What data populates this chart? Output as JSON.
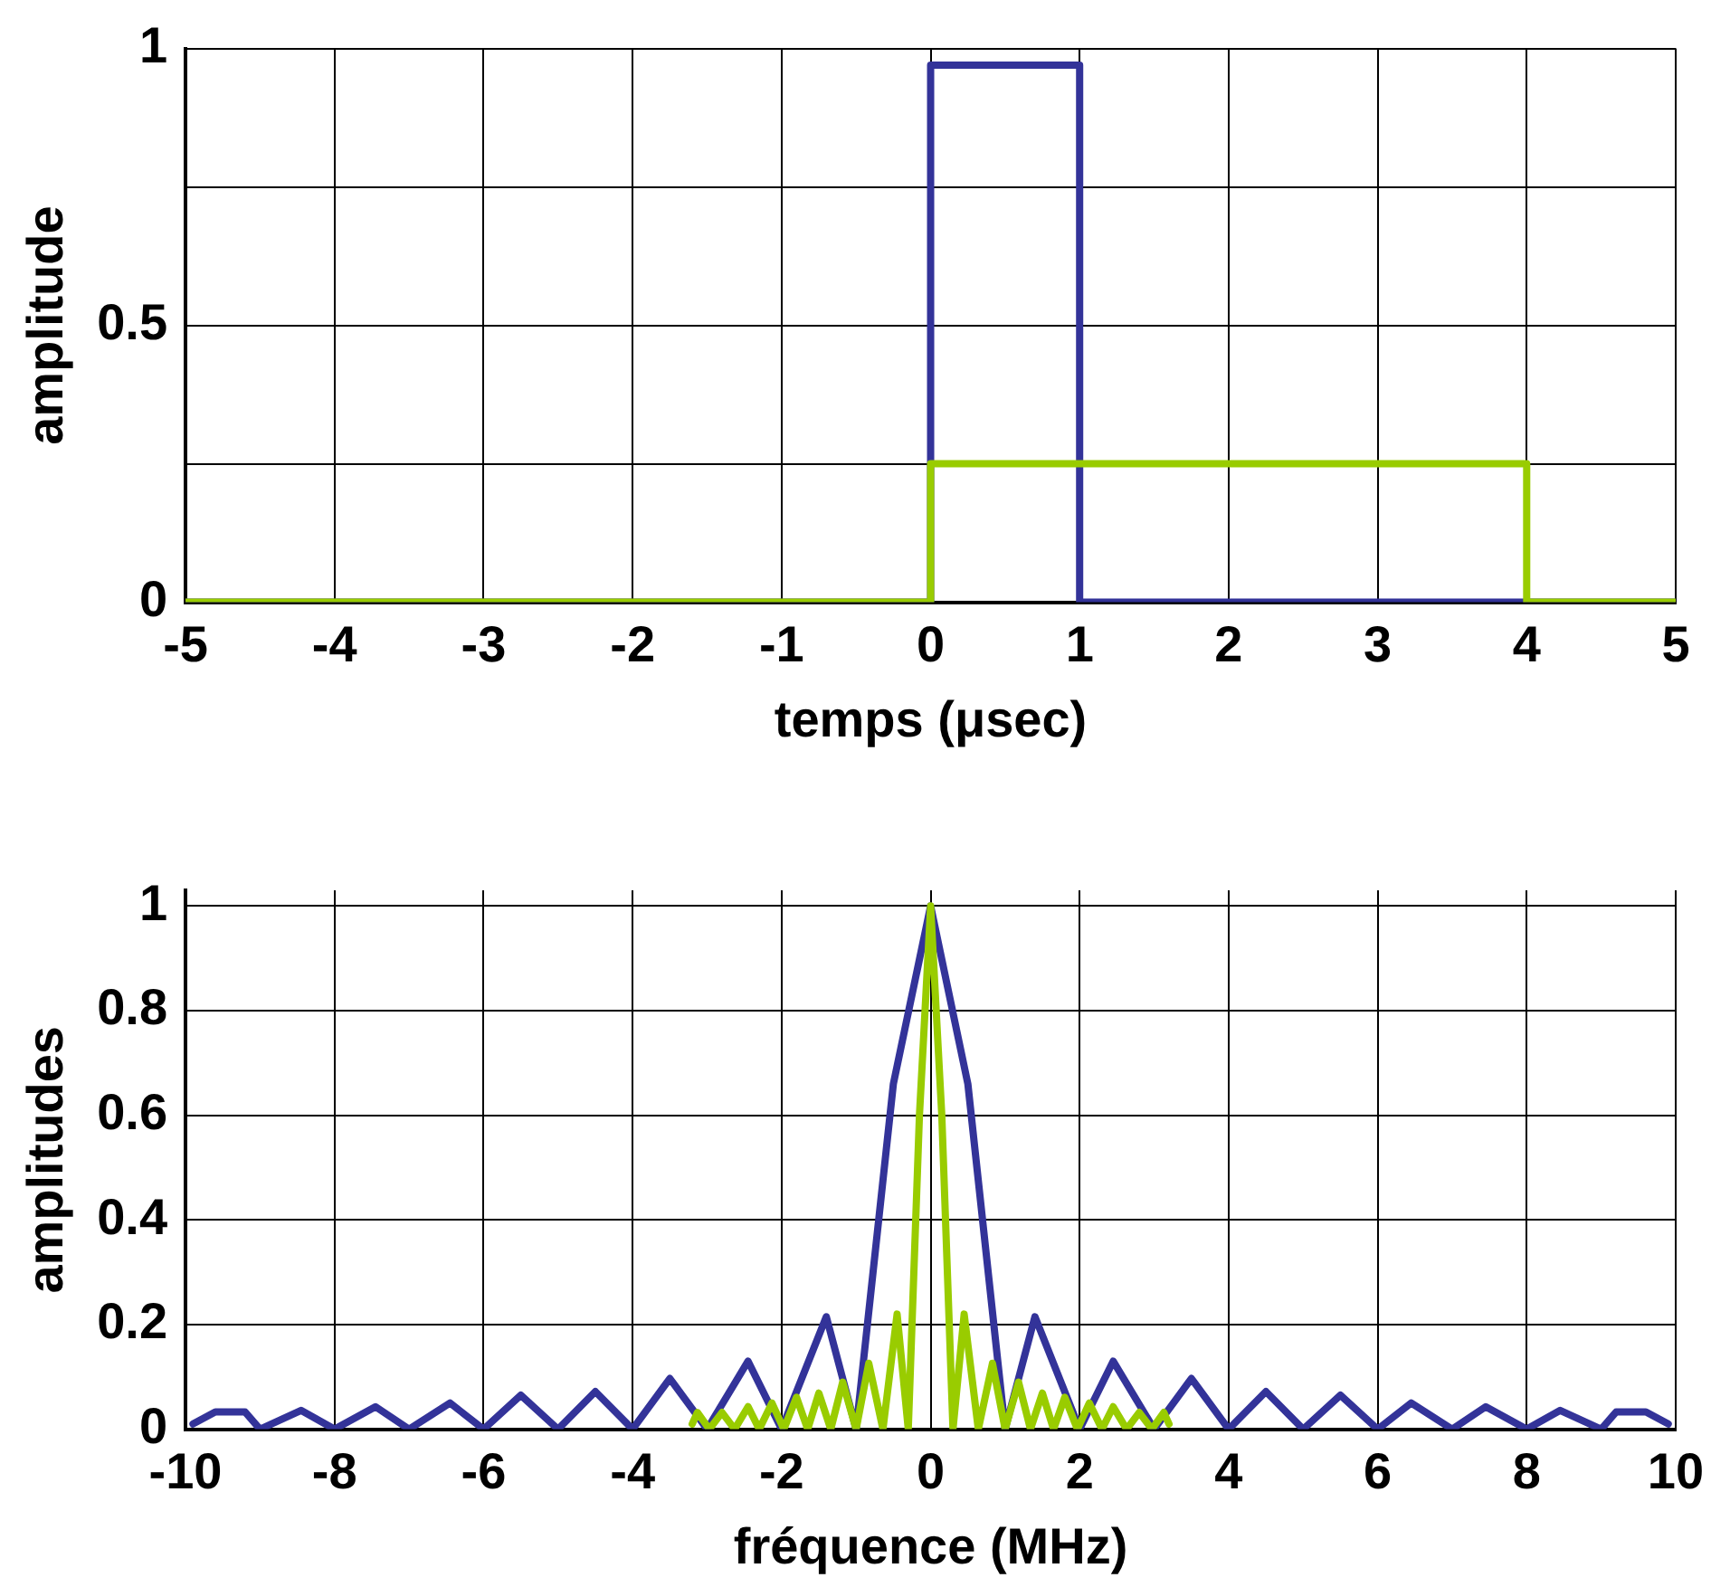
{
  "chart_data": [
    {
      "type": "line",
      "xlabel": "temps (μsec)",
      "ylabel": "amplitude",
      "xlim": [
        -5,
        5
      ],
      "xticks": [
        -5,
        -4,
        -3,
        -2,
        -1,
        0,
        1,
        2,
        3,
        4,
        5
      ],
      "ylim": [
        0,
        1
      ],
      "yticks": [
        0,
        {
          "value": 0.25,
          "label": null
        },
        0.5,
        {
          "value": 0.75,
          "label": null
        },
        1
      ],
      "grid": true,
      "marker": "none",
      "series": [
        {
          "color": "#333399",
          "x": [
            -5,
            0,
            0,
            1,
            1,
            5
          ],
          "values": [
            0,
            0,
            0.97,
            0.97,
            0,
            0
          ]
        },
        {
          "color": "#99cc00",
          "x": [
            -5,
            0,
            0,
            4,
            4,
            5
          ],
          "values": [
            0,
            0,
            0.25,
            0.25,
            0,
            0
          ]
        }
      ]
    },
    {
      "type": "line",
      "xlabel": "fréquence (MHz)",
      "ylabel": "amplitudes",
      "xlim": [
        -10,
        10
      ],
      "xticks": [
        -10,
        -8,
        -6,
        -4,
        -2,
        0,
        2,
        4,
        6,
        8,
        10
      ],
      "ylim": [
        0,
        1.03
      ],
      "yticks": [
        0,
        0.2,
        0.4,
        0.6,
        0.8,
        1
      ],
      "grid": true,
      "marker": "none",
      "series": [
        {
          "color": "#333399",
          "x": [
            -9.9,
            -9.6,
            -9.2,
            -9,
            -8.45,
            -8,
            -7.45,
            -7,
            -6.45,
            -6,
            -5.5,
            -5,
            -4.5,
            -4,
            -3.5,
            -3,
            -2.45,
            -2,
            -1.4,
            -1,
            -0.5,
            0,
            0.5,
            1,
            1.4,
            2,
            2.45,
            3,
            3.5,
            4,
            4.5,
            5,
            5.5,
            6,
            6.45,
            7,
            7.45,
            8,
            8.45,
            9,
            9.2,
            9.6,
            9.9
          ],
          "values": [
            0.01,
            0.033,
            0.033,
            0,
            0.036,
            0,
            0.043,
            0,
            0.05,
            0,
            0.065,
            0,
            0.072,
            0,
            0.097,
            0,
            0.13,
            0,
            0.215,
            0,
            0.66,
            1,
            0.66,
            0,
            0.215,
            0,
            0.13,
            0,
            0.097,
            0,
            0.072,
            0,
            0.065,
            0,
            0.05,
            0,
            0.043,
            0,
            0.036,
            0,
            0.033,
            0.033,
            0.01
          ]
        },
        {
          "color": "#99cc00",
          "x": [
            -3.2,
            -3.13,
            -2.97,
            -2.8,
            -2.63,
            -2.45,
            -2.3,
            -2.13,
            -1.97,
            -1.8,
            -1.65,
            -1.5,
            -1.34,
            -1.18,
            -1,
            -0.83,
            -0.64,
            -0.45,
            -0.3,
            -0.15,
            0,
            0.15,
            0.3,
            0.45,
            0.64,
            0.83,
            1,
            1.18,
            1.34,
            1.5,
            1.65,
            1.8,
            1.97,
            2.13,
            2.3,
            2.45,
            2.63,
            2.8,
            2.97,
            3.13,
            3.2
          ],
          "values": [
            0.01,
            0.032,
            0,
            0.032,
            0,
            0.043,
            0,
            0.05,
            0,
            0.061,
            0,
            0.069,
            0,
            0.09,
            0,
            0.126,
            0,
            0.22,
            0,
            0.6,
            1,
            0.6,
            0,
            0.22,
            0,
            0.126,
            0,
            0.09,
            0,
            0.069,
            0,
            0.061,
            0,
            0.05,
            0,
            0.043,
            0,
            0.032,
            0,
            0.032,
            0.01
          ]
        }
      ]
    }
  ]
}
